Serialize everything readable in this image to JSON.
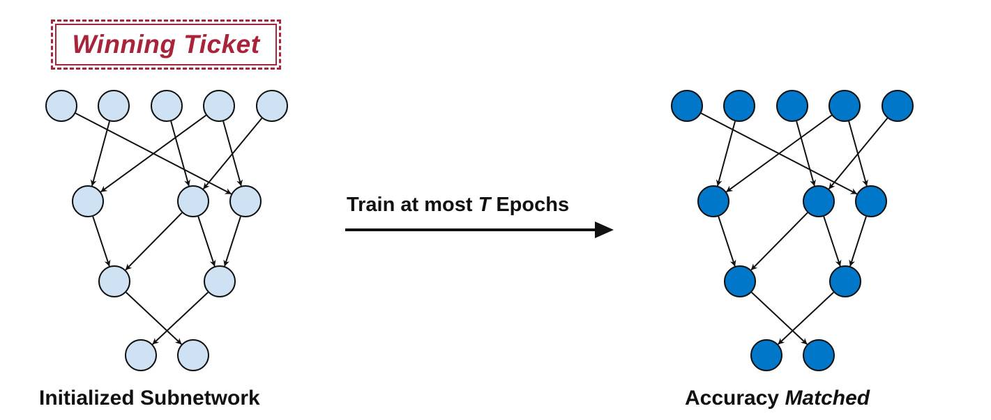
{
  "winning_ticket_label": "Winning Ticket",
  "arrow": {
    "label_prefix": "Train at most",
    "label_var": "T",
    "label_suffix": "Epochs"
  },
  "left_network": {
    "caption": "Initialized Subnetwork",
    "node_color": "#cfe2f3"
  },
  "right_network": {
    "caption_prefix": "Accuracy",
    "caption_emphasis": "Matched",
    "node_color": "#0077c8"
  },
  "colors": {
    "ticket_red": "#a8243a",
    "edge": "#111111"
  }
}
